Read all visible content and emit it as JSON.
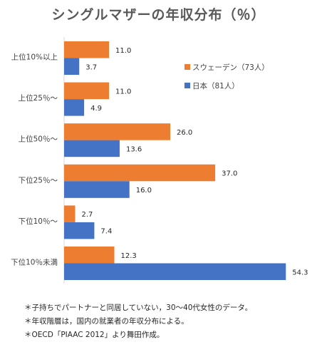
{
  "chart_data": {
    "type": "bar",
    "orientation": "horizontal",
    "title": "シングルマザーの年収分布（％）",
    "categories": [
      "上位10%以上",
      "上位25％～",
      "上位50％～",
      "下位25％～",
      "下位10％～",
      "下位10％未満"
    ],
    "series": [
      {
        "name": "スウェーデン（73人）",
        "color": "#ED7D31",
        "values": [
          11.0,
          11.0,
          26.0,
          37.0,
          2.7,
          12.3
        ],
        "labels": [
          "11.0",
          "11.0",
          "26.0",
          "37.0",
          "2.7",
          "12.3"
        ]
      },
      {
        "name": "日本（81人）",
        "color": "#4472C4",
        "values": [
          3.7,
          4.9,
          13.6,
          16.0,
          7.4,
          54.3
        ],
        "labels": [
          "3.7",
          "4.9",
          "13.6",
          "16.0",
          "7.4",
          "54.3"
        ]
      }
    ],
    "xlim": [
      0,
      60
    ],
    "legend_position": "right",
    "grid": false
  },
  "notes": [
    "＊子持ちでパートナーと同居していない，30～40代女性のデータ。",
    "＊年収階層は，国内の就業者の年収分布による。",
    "＊OECD「PIAAC 2012」より舞田作成。"
  ]
}
